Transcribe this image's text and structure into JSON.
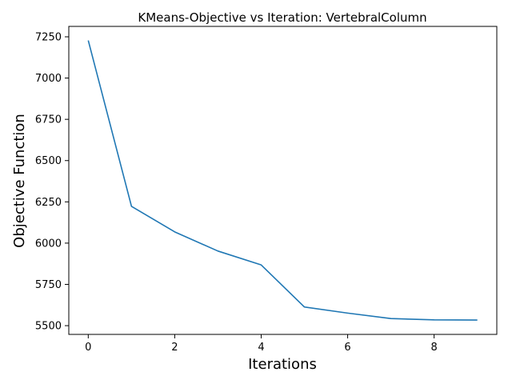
{
  "chart_data": {
    "type": "line",
    "title": "KMeans-Objective vs Iteration: VertebralColumn",
    "xlabel": "Iterations",
    "ylabel": "Objective Function",
    "xlim": [
      -0.45,
      9.45
    ],
    "ylim": [
      5447,
      7313
    ],
    "xticks": [
      0,
      2,
      4,
      6,
      8
    ],
    "yticks": [
      5500,
      5750,
      6000,
      6250,
      6500,
      6750,
      7000,
      7250
    ],
    "grid": false,
    "legend": "none",
    "color": "#1f77b4",
    "series": [
      {
        "x": [
          0,
          1,
          2,
          3,
          4,
          5,
          6,
          7,
          8,
          9
        ],
        "values": [
          7228,
          6223,
          6068,
          5952,
          5868,
          5613,
          5576,
          5543,
          5535,
          5534
        ]
      }
    ]
  }
}
